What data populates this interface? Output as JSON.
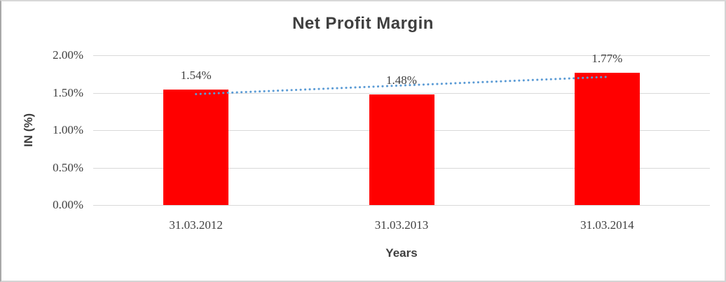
{
  "chart_data": {
    "type": "bar",
    "title": "Net Profit Margin",
    "xlabel": "Years",
    "ylabel": "IN (%)",
    "categories": [
      "31.03.2012",
      "31.03.2013",
      "31.03.2014"
    ],
    "values": [
      1.54,
      1.48,
      1.77
    ],
    "data_labels": [
      "1.54%",
      "1.48%",
      "1.77%"
    ],
    "ylim": [
      0,
      2
    ],
    "ytick_step": 0.5,
    "ytick_labels": [
      "0.00%",
      "0.50%",
      "1.00%",
      "1.50%",
      "2.00%"
    ],
    "grid": true,
    "legend": "none",
    "trendline": {
      "type": "linear",
      "style": "dotted",
      "color": "#5b9bd5"
    },
    "colors": {
      "bar": "#ff0000",
      "gridline": "#d9d9d9",
      "text": "#404040",
      "title_text": "#3f3f3f",
      "frame_border": "#c9c9c9"
    }
  }
}
